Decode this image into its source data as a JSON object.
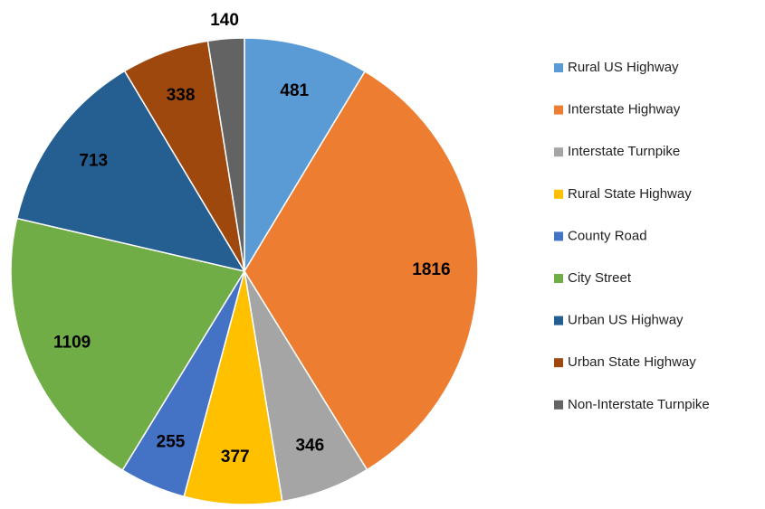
{
  "chart_data": {
    "type": "pie",
    "categories": [
      "Rural US Highway",
      "Interstate Highway",
      "Interstate Turnpike",
      "Rural State Highway",
      "County Road",
      "City Street",
      "Urban US Highway",
      "Urban State Highway",
      "Non-Interstate Turnpike"
    ],
    "values": [
      481,
      1816,
      346,
      377,
      255,
      1109,
      713,
      338,
      140
    ],
    "colors": [
      "#5b9bd5",
      "#ed7d31",
      "#a5a5a5",
      "#ffc000",
      "#4472c4",
      "#70ad47",
      "#255e91",
      "#9e480e",
      "#636363"
    ],
    "legend": "right"
  }
}
